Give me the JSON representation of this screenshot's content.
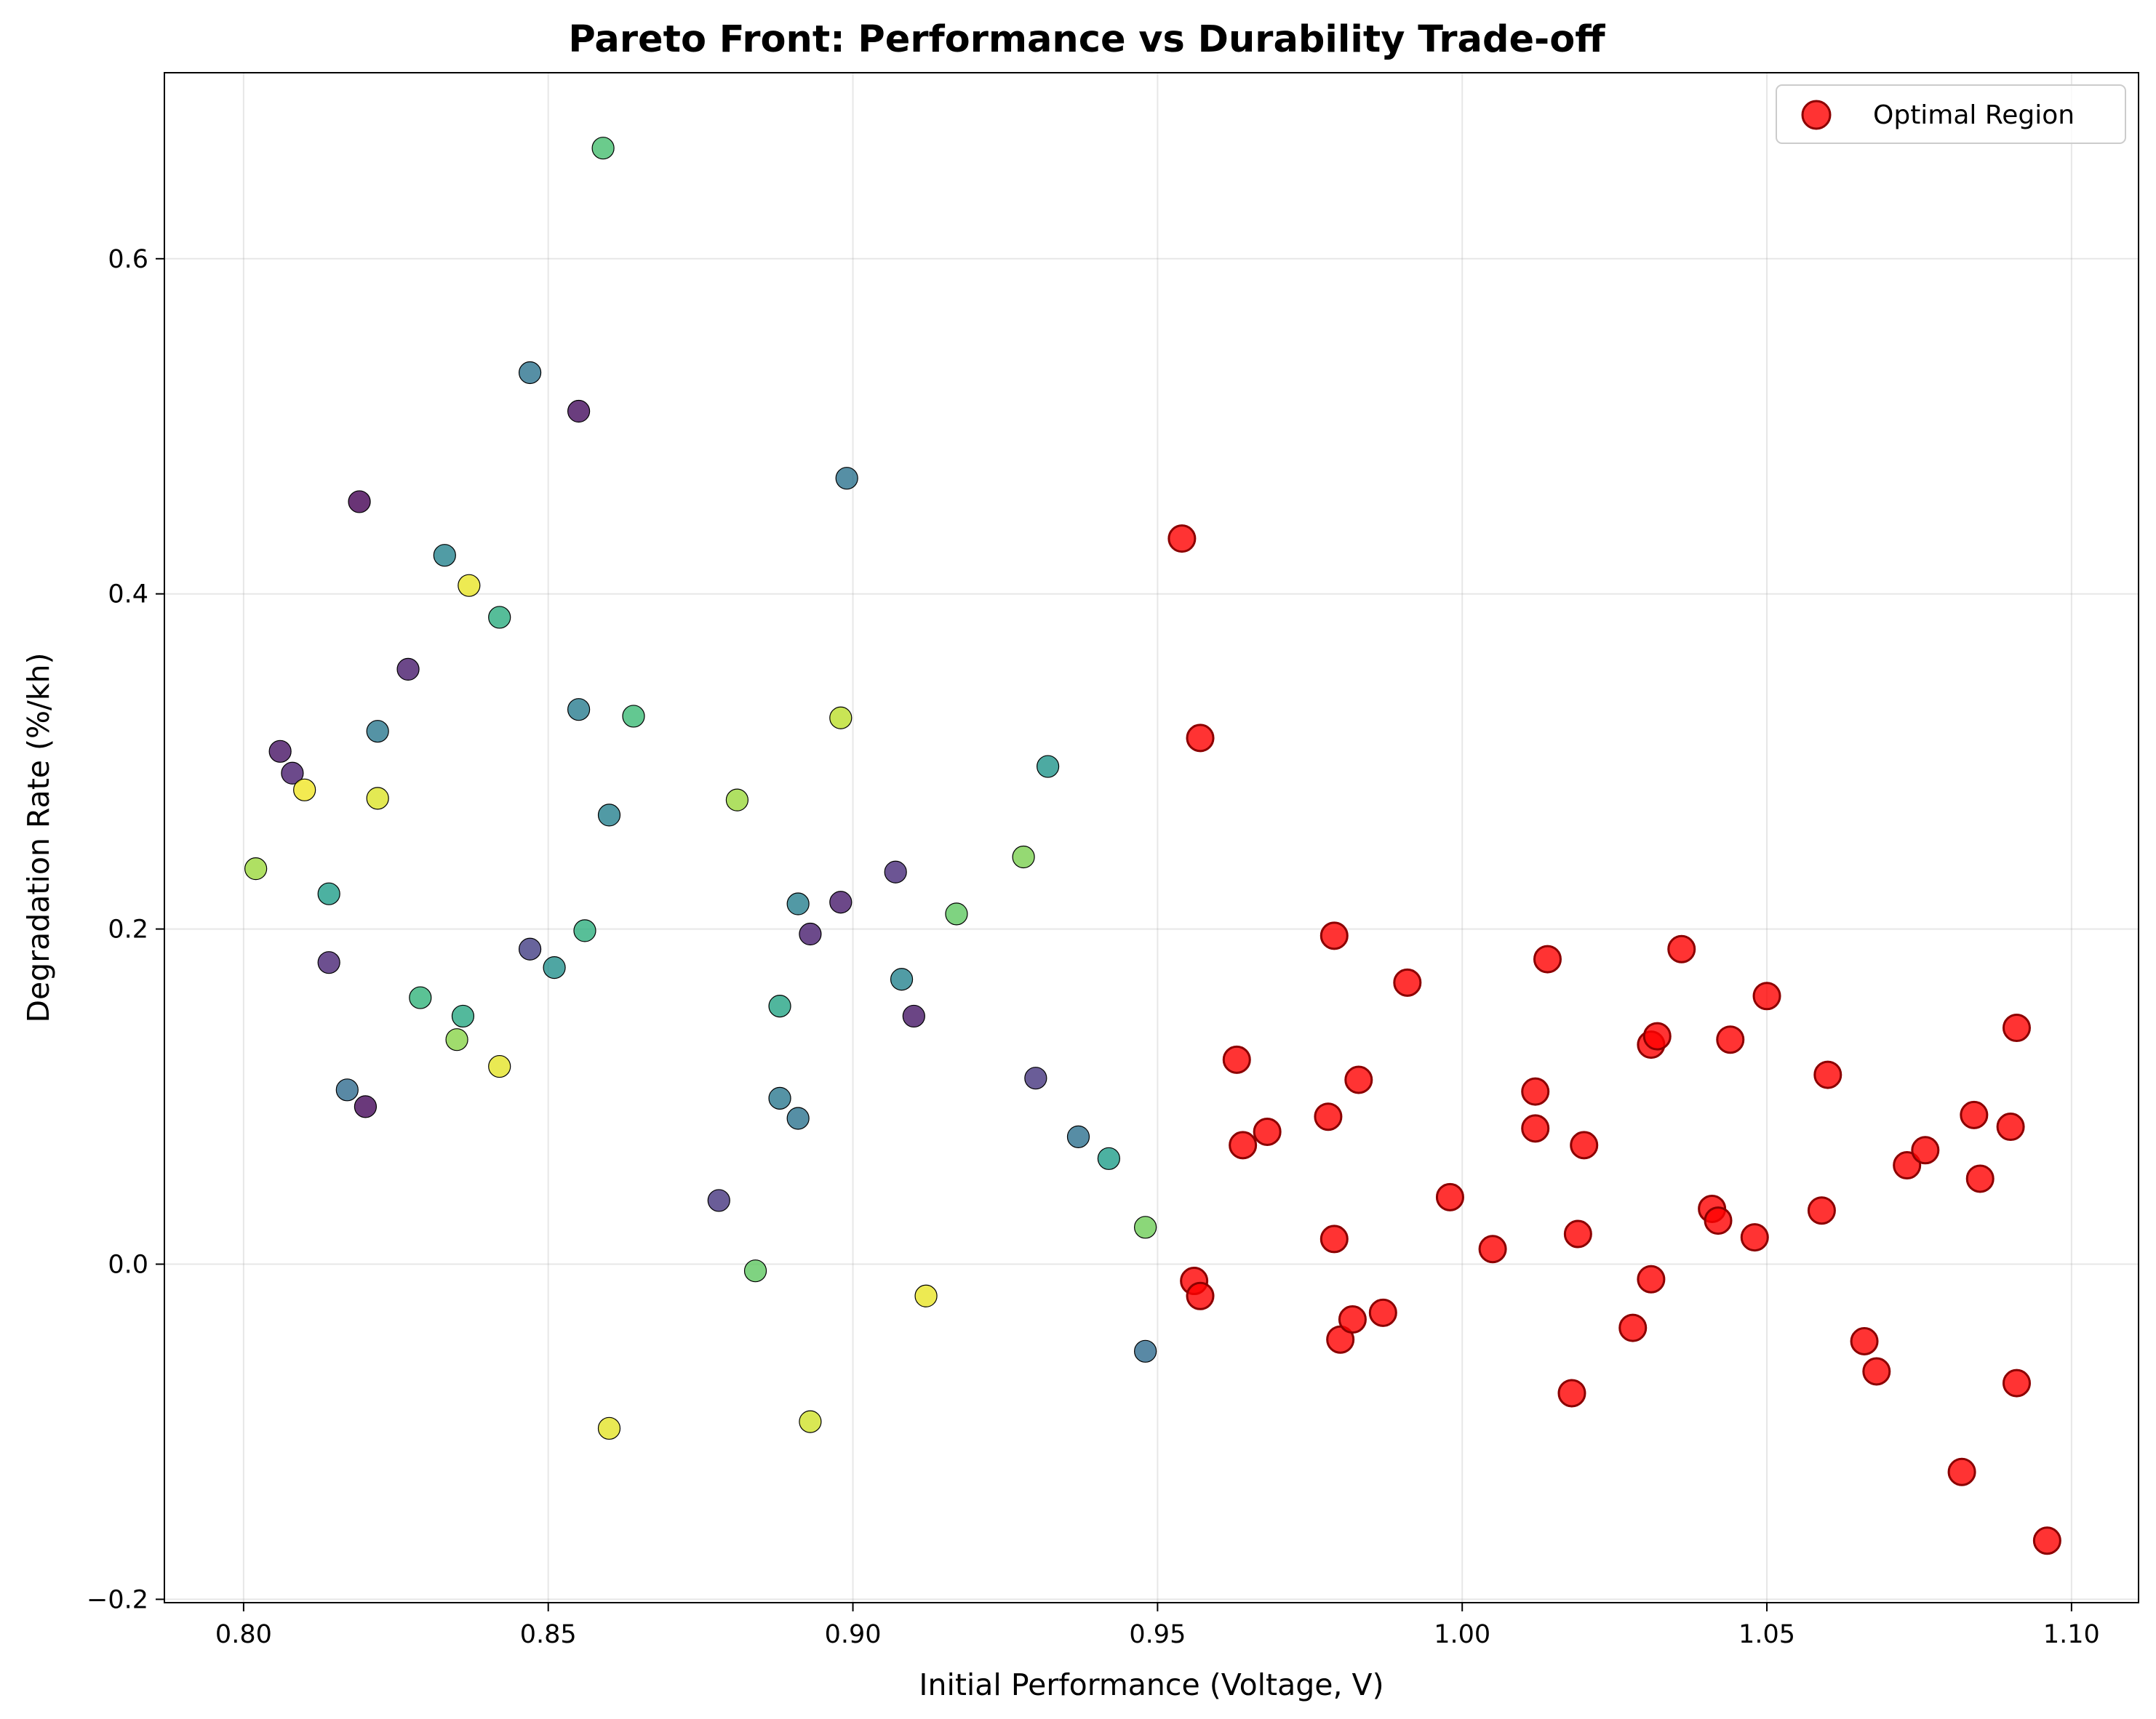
{
  "chart_data": {
    "type": "scatter",
    "title": "Pareto Front: Performance vs Durability Trade-off",
    "xlabel": "Initial Performance (Voltage, V)",
    "ylabel": "Degradation Rate (%/kh)",
    "xlim": [
      0.787,
      1.111
    ],
    "ylim": [
      -0.202,
      0.711
    ],
    "xticks": [
      0.8,
      0.85,
      0.9,
      0.95,
      1.0,
      1.05,
      1.1
    ],
    "xtick_labels": [
      "0.80",
      "0.85",
      "0.90",
      "0.95",
      "1.00",
      "1.05",
      "1.10"
    ],
    "yticks": [
      -0.2,
      0.0,
      0.2,
      0.4,
      0.6
    ],
    "ytick_labels": [
      "−0.2",
      "0.0",
      "0.2",
      "0.4",
      "0.6"
    ],
    "grid": true,
    "legend_position": "top-right",
    "series": [
      {
        "colormap": "viridis",
        "points": [
          {
            "x": 0.802,
            "y": 0.236,
            "c": 0.85
          },
          {
            "x": 0.806,
            "y": 0.306,
            "c": 0.05
          },
          {
            "x": 0.808,
            "y": 0.293,
            "c": 0.08
          },
          {
            "x": 0.81,
            "y": 0.283,
            "c": 0.98
          },
          {
            "x": 0.814,
            "y": 0.221,
            "c": 0.55
          },
          {
            "x": 0.814,
            "y": 0.18,
            "c": 0.1
          },
          {
            "x": 0.817,
            "y": 0.104,
            "c": 0.35
          },
          {
            "x": 0.819,
            "y": 0.455,
            "c": 0.0
          },
          {
            "x": 0.82,
            "y": 0.094,
            "c": 0.02
          },
          {
            "x": 0.822,
            "y": 0.318,
            "c": 0.4
          },
          {
            "x": 0.822,
            "y": 0.278,
            "c": 0.95
          },
          {
            "x": 0.827,
            "y": 0.355,
            "c": 0.07
          },
          {
            "x": 0.829,
            "y": 0.159,
            "c": 0.65
          },
          {
            "x": 0.833,
            "y": 0.423,
            "c": 0.45
          },
          {
            "x": 0.835,
            "y": 0.134,
            "c": 0.82
          },
          {
            "x": 0.836,
            "y": 0.148,
            "c": 0.6
          },
          {
            "x": 0.837,
            "y": 0.405,
            "c": 0.97
          },
          {
            "x": 0.842,
            "y": 0.386,
            "c": 0.62
          },
          {
            "x": 0.842,
            "y": 0.118,
            "c": 0.96
          },
          {
            "x": 0.847,
            "y": 0.532,
            "c": 0.38
          },
          {
            "x": 0.847,
            "y": 0.188,
            "c": 0.18
          },
          {
            "x": 0.851,
            "y": 0.177,
            "c": 0.5
          },
          {
            "x": 0.855,
            "y": 0.509,
            "c": 0.03
          },
          {
            "x": 0.855,
            "y": 0.331,
            "c": 0.42
          },
          {
            "x": 0.856,
            "y": 0.199,
            "c": 0.63
          },
          {
            "x": 0.859,
            "y": 0.666,
            "c": 0.7
          },
          {
            "x": 0.86,
            "y": 0.268,
            "c": 0.44
          },
          {
            "x": 0.86,
            "y": -0.098,
            "c": 0.96
          },
          {
            "x": 0.864,
            "y": 0.327,
            "c": 0.68
          },
          {
            "x": 0.878,
            "y": 0.038,
            "c": 0.15
          },
          {
            "x": 0.881,
            "y": 0.277,
            "c": 0.85
          },
          {
            "x": 0.884,
            "y": -0.004,
            "c": 0.75
          },
          {
            "x": 0.888,
            "y": 0.154,
            "c": 0.58
          },
          {
            "x": 0.888,
            "y": 0.099,
            "c": 0.4
          },
          {
            "x": 0.891,
            "y": 0.215,
            "c": 0.43
          },
          {
            "x": 0.891,
            "y": 0.087,
            "c": 0.38
          },
          {
            "x": 0.893,
            "y": 0.197,
            "c": 0.08
          },
          {
            "x": 0.893,
            "y": -0.094,
            "c": 0.93
          },
          {
            "x": 0.898,
            "y": 0.216,
            "c": 0.07
          },
          {
            "x": 0.898,
            "y": 0.326,
            "c": 0.9
          },
          {
            "x": 0.899,
            "y": 0.469,
            "c": 0.38
          },
          {
            "x": 0.907,
            "y": 0.234,
            "c": 0.12
          },
          {
            "x": 0.908,
            "y": 0.17,
            "c": 0.45
          },
          {
            "x": 0.91,
            "y": 0.148,
            "c": 0.06
          },
          {
            "x": 0.912,
            "y": -0.019,
            "c": 0.97
          },
          {
            "x": 0.917,
            "y": 0.209,
            "c": 0.75
          },
          {
            "x": 0.928,
            "y": 0.243,
            "c": 0.8
          },
          {
            "x": 0.93,
            "y": 0.111,
            "c": 0.15
          },
          {
            "x": 0.932,
            "y": 0.297,
            "c": 0.52
          },
          {
            "x": 0.937,
            "y": 0.076,
            "c": 0.37
          },
          {
            "x": 0.942,
            "y": 0.063,
            "c": 0.55
          },
          {
            "x": 0.948,
            "y": 0.022,
            "c": 0.78
          },
          {
            "x": 0.948,
            "y": -0.052,
            "c": 0.35
          }
        ]
      },
      {
        "name": "Optimal Region",
        "color": "#ff0000",
        "points": [
          {
            "x": 0.954,
            "y": 0.433
          },
          {
            "x": 0.956,
            "y": -0.01
          },
          {
            "x": 0.957,
            "y": 0.314
          },
          {
            "x": 0.957,
            "y": -0.019
          },
          {
            "x": 0.963,
            "y": 0.122
          },
          {
            "x": 0.964,
            "y": 0.071
          },
          {
            "x": 0.968,
            "y": 0.079
          },
          {
            "x": 0.978,
            "y": 0.088
          },
          {
            "x": 0.979,
            "y": 0.196
          },
          {
            "x": 0.979,
            "y": 0.015
          },
          {
            "x": 0.98,
            "y": -0.045
          },
          {
            "x": 0.982,
            "y": -0.033
          },
          {
            "x": 0.983,
            "y": 0.11
          },
          {
            "x": 0.987,
            "y": -0.029
          },
          {
            "x": 0.991,
            "y": 0.168
          },
          {
            "x": 0.998,
            "y": 0.04
          },
          {
            "x": 1.005,
            "y": 0.009
          },
          {
            "x": 1.012,
            "y": 0.103
          },
          {
            "x": 1.012,
            "y": 0.081
          },
          {
            "x": 1.014,
            "y": 0.182
          },
          {
            "x": 1.018,
            "y": -0.077
          },
          {
            "x": 1.019,
            "y": 0.018
          },
          {
            "x": 1.02,
            "y": 0.071
          },
          {
            "x": 1.028,
            "y": -0.038
          },
          {
            "x": 1.031,
            "y": -0.009
          },
          {
            "x": 1.031,
            "y": 0.131
          },
          {
            "x": 1.032,
            "y": 0.136
          },
          {
            "x": 1.036,
            "y": 0.188
          },
          {
            "x": 1.041,
            "y": 0.033
          },
          {
            "x": 1.042,
            "y": 0.026
          },
          {
            "x": 1.044,
            "y": 0.134
          },
          {
            "x": 1.048,
            "y": 0.016
          },
          {
            "x": 1.05,
            "y": 0.16
          },
          {
            "x": 1.059,
            "y": 0.032
          },
          {
            "x": 1.06,
            "y": 0.113
          },
          {
            "x": 1.066,
            "y": -0.046
          },
          {
            "x": 1.068,
            "y": -0.064
          },
          {
            "x": 1.073,
            "y": 0.059
          },
          {
            "x": 1.076,
            "y": 0.068
          },
          {
            "x": 1.082,
            "y": -0.124
          },
          {
            "x": 1.084,
            "y": 0.089
          },
          {
            "x": 1.085,
            "y": 0.051
          },
          {
            "x": 1.09,
            "y": 0.082
          },
          {
            "x": 1.091,
            "y": 0.141
          },
          {
            "x": 1.091,
            "y": -0.071
          },
          {
            "x": 1.096,
            "y": -0.165
          }
        ]
      }
    ]
  }
}
